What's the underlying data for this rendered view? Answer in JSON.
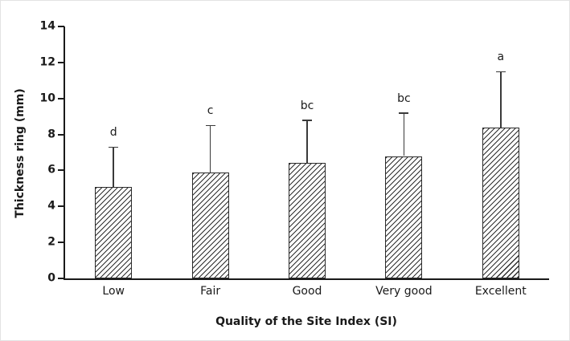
{
  "chart_data": {
    "type": "bar",
    "title": "",
    "xlabel": "Quality of the Site Index (SI)",
    "ylabel": "Thickness ring (mm)",
    "categories": [
      "Low",
      "Fair",
      "Good",
      "Very good",
      "Excellent"
    ],
    "values": [
      5.1,
      5.9,
      6.4,
      6.8,
      8.4
    ],
    "error_up": [
      2.2,
      2.6,
      2.4,
      2.4,
      3.1
    ],
    "sig_letters": [
      "d",
      "c",
      "bc",
      "bc",
      "a"
    ],
    "ylim": [
      0,
      14
    ],
    "ytick_step": 2,
    "grid": false,
    "legend": "none",
    "bar_fill": "diagonal-hatch",
    "bar_outline_color": "#2b2b2b",
    "axis_color": "#1a1a1a"
  }
}
